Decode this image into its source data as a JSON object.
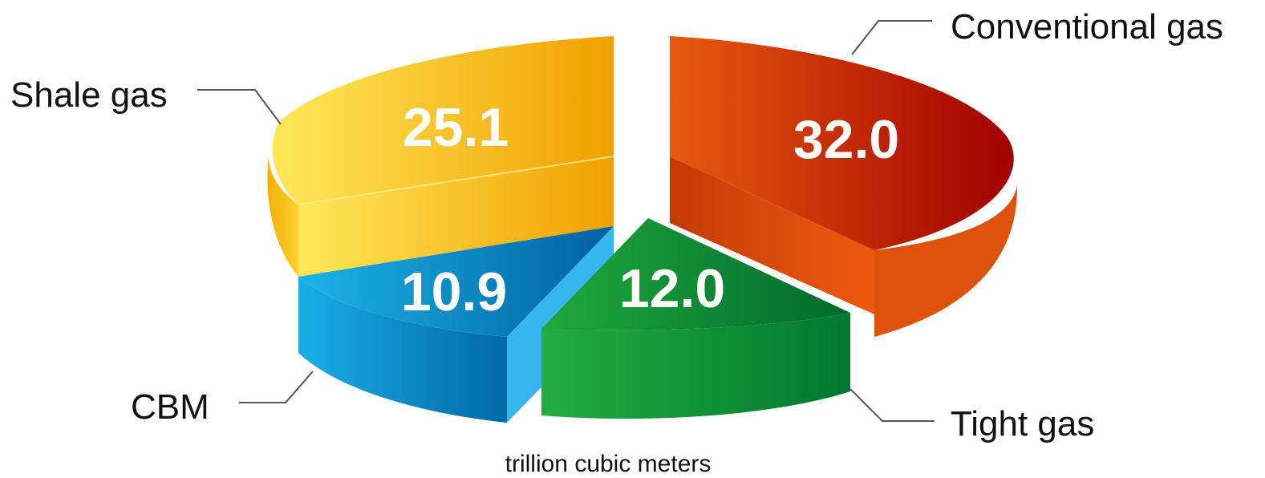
{
  "chart_data": {
    "type": "pie",
    "unit": "trillion cubic meters",
    "slices": [
      {
        "name": "Conventional gas",
        "value": 32.0,
        "label": "32.0",
        "color_start": "#e85a0e",
        "color_end": "#a00000"
      },
      {
        "name": "Tight gas",
        "value": 12.0,
        "label": "12.0",
        "color_start": "#1faa3c",
        "color_end": "#00692c"
      },
      {
        "name": "CBM",
        "value": 10.9,
        "label": "10.9",
        "color_start": "#1cb4e8",
        "color_end": "#0060a0"
      },
      {
        "name": "Shale gas",
        "value": 25.1,
        "label": "25.1",
        "color_start": "#ffe85a",
        "color_end": "#f0a000"
      }
    ],
    "legend": "none"
  }
}
